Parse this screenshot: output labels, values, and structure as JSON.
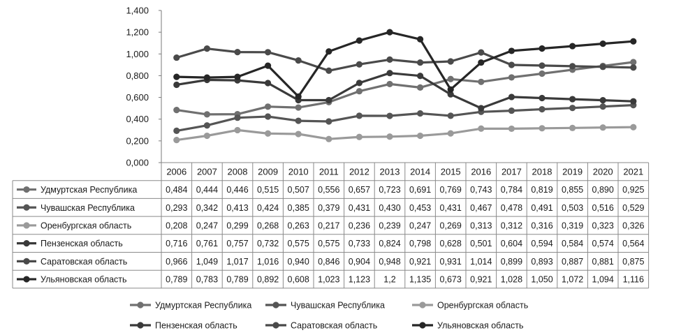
{
  "chart_data": {
    "type": "line",
    "ylim": [
      0,
      1.4
    ],
    "y_ticks": [
      "0,000",
      "0,200",
      "0,400",
      "0,600",
      "0,800",
      "1,000",
      "1,200",
      "1,400"
    ],
    "categories": [
      "2006",
      "2007",
      "2008",
      "2009",
      "2010",
      "2011",
      "2012",
      "2013",
      "2014",
      "2015",
      "2016",
      "2017",
      "2018",
      "2019",
      "2020",
      "2021"
    ],
    "grid": false,
    "legend_position": "bottom",
    "series": [
      {
        "name": "Удмуртская Республика",
        "color": "#707070",
        "values": [
          0.484,
          0.444,
          0.446,
          0.515,
          0.507,
          0.556,
          0.657,
          0.723,
          0.691,
          0.769,
          0.743,
          0.784,
          0.819,
          0.855,
          0.89,
          0.925
        ],
        "labels": [
          "0,484",
          "0,444",
          "0,446",
          "0,515",
          "0,507",
          "0,556",
          "0,657",
          "0,723",
          "0,691",
          "0,769",
          "0,743",
          "0,784",
          "0,819",
          "0,855",
          "0,890",
          "0,925"
        ]
      },
      {
        "name": "Чувашская Республика",
        "color": "#555555",
        "values": [
          0.293,
          0.342,
          0.413,
          0.424,
          0.385,
          0.379,
          0.431,
          0.43,
          0.453,
          0.431,
          0.467,
          0.478,
          0.491,
          0.503,
          0.516,
          0.529
        ],
        "labels": [
          "0,293",
          "0,342",
          "0,413",
          "0,424",
          "0,385",
          "0,379",
          "0,431",
          "0,430",
          "0,453",
          "0,431",
          "0,467",
          "0,478",
          "0,491",
          "0,503",
          "0,516",
          "0,529"
        ]
      },
      {
        "name": "Оренбургская область",
        "color": "#9a9a9a",
        "values": [
          0.208,
          0.247,
          0.299,
          0.268,
          0.263,
          0.217,
          0.236,
          0.239,
          0.247,
          0.269,
          0.313,
          0.312,
          0.316,
          0.319,
          0.323,
          0.326
        ],
        "labels": [
          "0,208",
          "0,247",
          "0,299",
          "0,268",
          "0,263",
          "0,217",
          "0,236",
          "0,239",
          "0,247",
          "0,269",
          "0,313",
          "0,312",
          "0,316",
          "0,319",
          "0,323",
          "0,326"
        ]
      },
      {
        "name": "Пензенская область",
        "color": "#3a3a3a",
        "values": [
          0.716,
          0.761,
          0.757,
          0.732,
          0.575,
          0.575,
          0.733,
          0.824,
          0.798,
          0.628,
          0.501,
          0.604,
          0.594,
          0.584,
          0.574,
          0.564
        ],
        "labels": [
          "0,716",
          "0,761",
          "0,757",
          "0,732",
          "0,575",
          "0,575",
          "0,733",
          "0,824",
          "0,798",
          "0,628",
          "0,501",
          "0,604",
          "0,594",
          "0,584",
          "0,574",
          "0,564"
        ]
      },
      {
        "name": "Саратовская область",
        "color": "#4a4a4a",
        "values": [
          0.966,
          1.049,
          1.017,
          1.016,
          0.94,
          0.846,
          0.904,
          0.948,
          0.921,
          0.931,
          1.014,
          0.899,
          0.893,
          0.887,
          0.881,
          0.875
        ],
        "labels": [
          "0,966",
          "1,049",
          "1,017",
          "1,016",
          "0,940",
          "0,846",
          "0,904",
          "0,948",
          "0,921",
          "0,931",
          "1,014",
          "0,899",
          "0,893",
          "0,887",
          "0,881",
          "0,875"
        ]
      },
      {
        "name": "Ульяновская область",
        "color": "#262626",
        "values": [
          0.789,
          0.783,
          0.789,
          0.892,
          0.608,
          1.023,
          1.123,
          1.2,
          1.135,
          0.673,
          0.921,
          1.028,
          1.05,
          1.072,
          1.094,
          1.116
        ],
        "labels": [
          "0,789",
          "0,783",
          "0,789",
          "0,892",
          "0,608",
          "1,023",
          "1,123",
          "1,2",
          "1,135",
          "0,673",
          "0,921",
          "1,028",
          "1,050",
          "1,072",
          "1,094",
          "1,116"
        ]
      }
    ]
  }
}
